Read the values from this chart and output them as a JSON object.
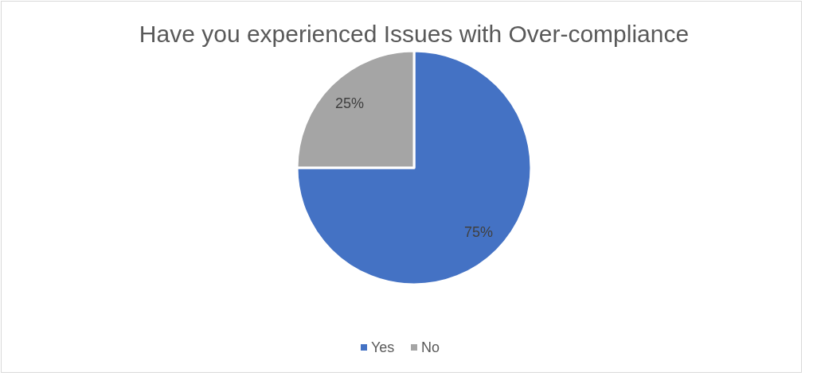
{
  "chart_data": {
    "type": "pie",
    "title": "Have you experienced Issues with Over-compliance",
    "categories": [
      "Yes",
      "No"
    ],
    "values": [
      75,
      25
    ],
    "colors": [
      "#4472c4",
      "#a5a5a5"
    ],
    "value_labels": [
      "75%",
      "25%"
    ],
    "legend": "bottom"
  }
}
